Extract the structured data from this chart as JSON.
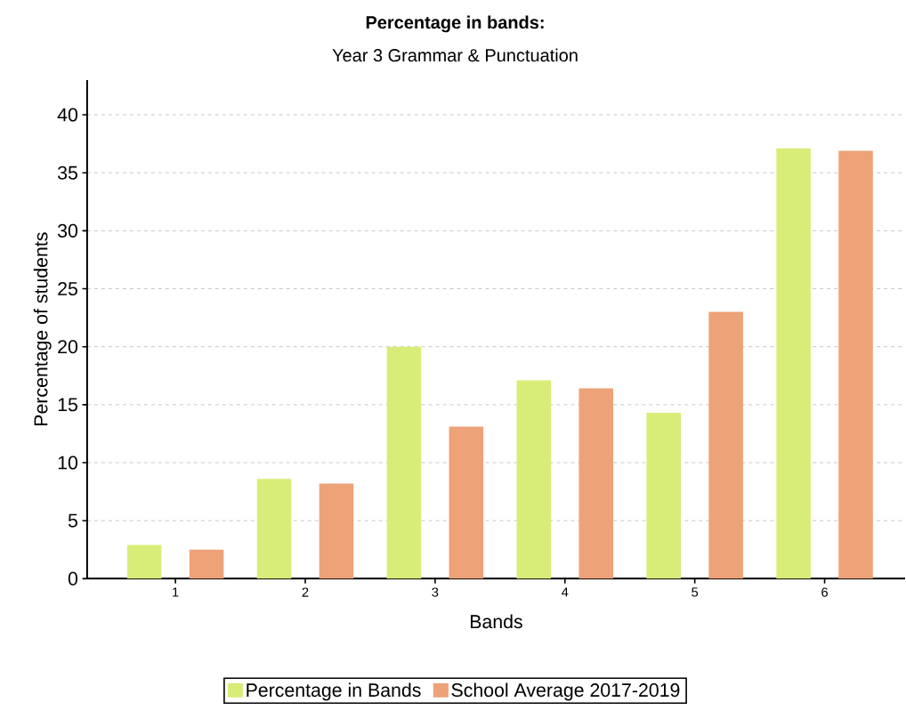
{
  "chart_data": {
    "type": "bar",
    "title": "Percentage in bands:",
    "subtitle": "Year 3 Grammar & Punctuation",
    "xlabel": "Bands",
    "ylabel": "Percentage of students",
    "categories": [
      "1",
      "2",
      "3",
      "4",
      "5",
      "6"
    ],
    "series": [
      {
        "name": "Percentage in Bands",
        "color": "#d8ed78",
        "values": [
          2.9,
          8.6,
          20.0,
          17.1,
          14.3,
          37.1
        ]
      },
      {
        "name": "School Average 2017-2019",
        "color": "#eea277",
        "values": [
          2.5,
          8.2,
          13.1,
          16.4,
          23.0,
          36.9
        ]
      }
    ],
    "ylim": [
      0,
      43
    ],
    "yticks": [
      0,
      5,
      10,
      15,
      20,
      25,
      30,
      35,
      40
    ],
    "grid": "y",
    "legend": "bottom"
  }
}
